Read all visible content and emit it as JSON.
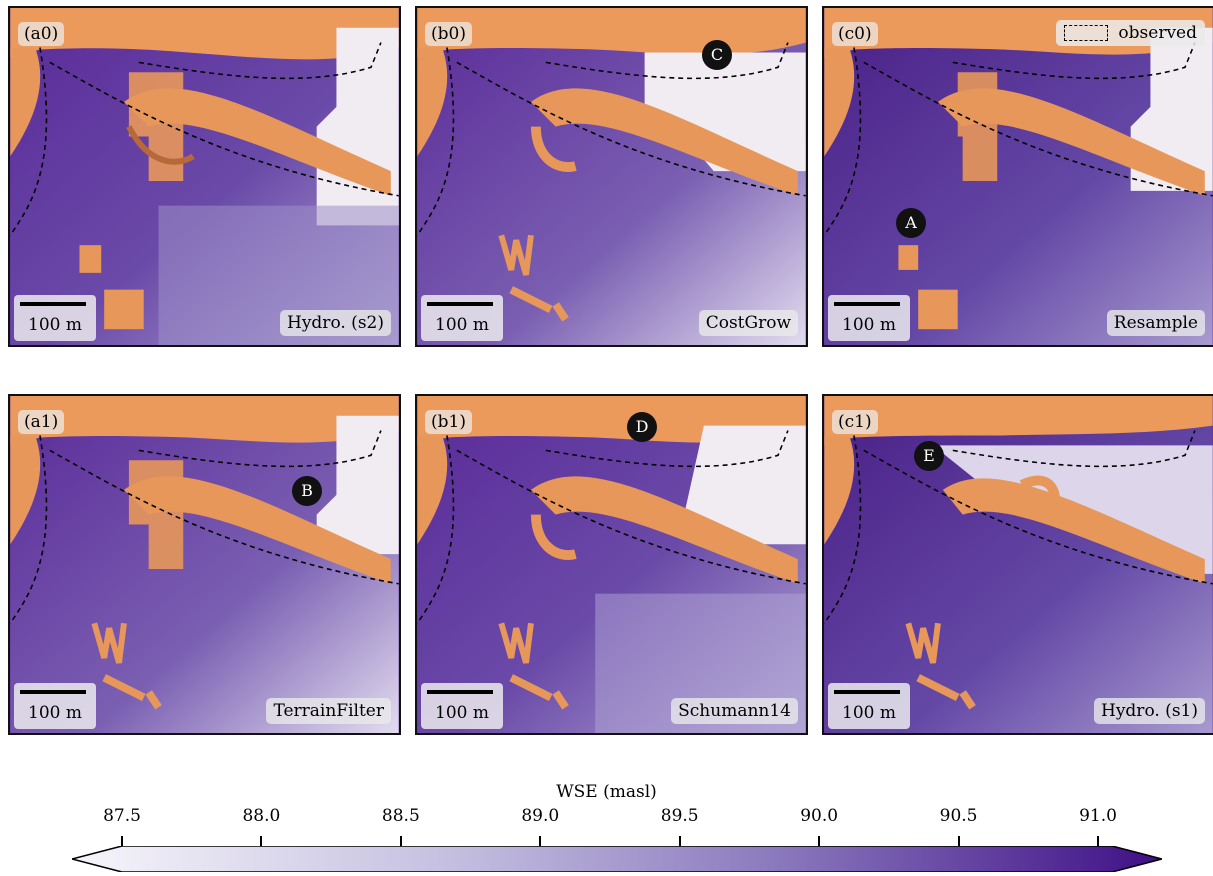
{
  "figure": {
    "panels": [
      {
        "id": "a0",
        "label": "(a0)",
        "method": "Hydro. (s2)",
        "scale": "100 m"
      },
      {
        "id": "b0",
        "label": "(b0)",
        "method": "CostGrow",
        "scale": "100 m"
      },
      {
        "id": "c0",
        "label": "(c0)",
        "method": "Resample",
        "scale": "100 m"
      },
      {
        "id": "a1",
        "label": "(a1)",
        "method": "TerrainFilter",
        "scale": "100 m"
      },
      {
        "id": "b1",
        "label": "(b1)",
        "method": "Schumann14",
        "scale": "100 m"
      },
      {
        "id": "c1",
        "label": "(c1)",
        "method": "Hydro. (s1)",
        "scale": "100 m"
      }
    ],
    "markers": {
      "A": "A",
      "B": "B",
      "C": "C",
      "D": "D",
      "E": "E"
    },
    "legend": {
      "observed": "observed"
    }
  },
  "colorbar": {
    "title": "WSE (masl)",
    "ticks": [
      "87.5",
      "88.0",
      "88.5",
      "89.0",
      "89.5",
      "90.0",
      "90.5",
      "91.0"
    ],
    "range": [
      87.5,
      91.0
    ],
    "colors": {
      "low": "#f7f5fb",
      "high": "#3f0f86"
    }
  },
  "colors": {
    "terrain": "#ec9a5c",
    "water_dark": "#4e2288",
    "water_light": "#9b8cc8"
  }
}
